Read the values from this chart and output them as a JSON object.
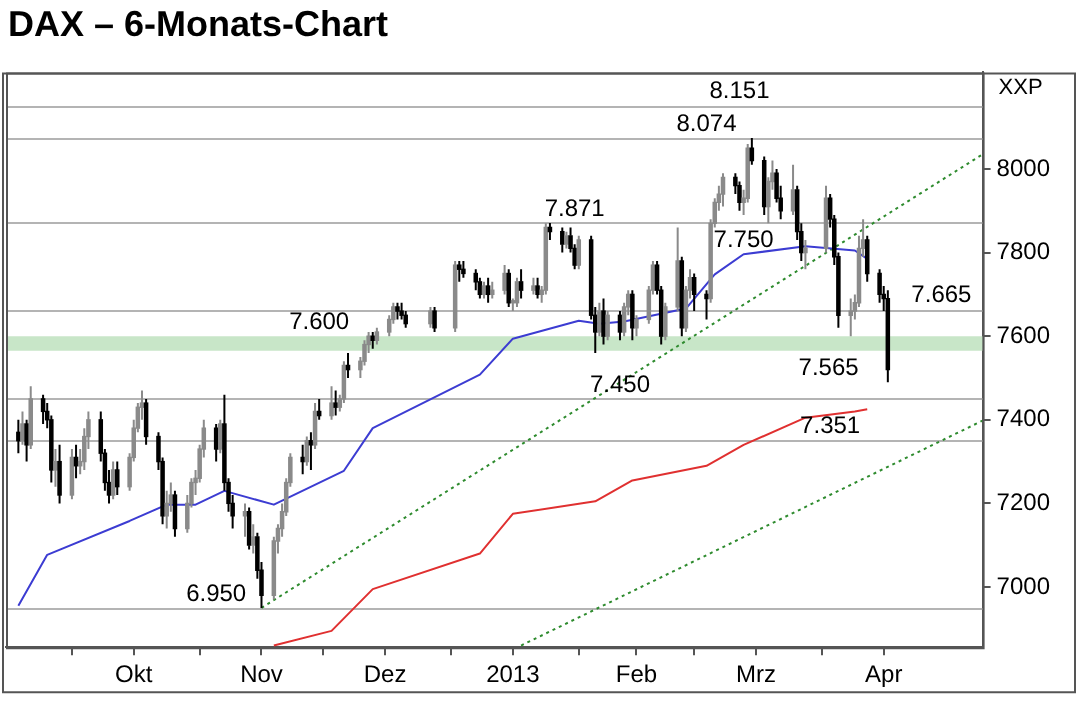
{
  "chart_data": {
    "type": "candlestick",
    "title": "DAX – 6-Monats-Chart",
    "ylabel": "XXP",
    "colors": [
      "#000000",
      "#8a8a8a",
      "#000000",
      "#8a8a8a",
      "#000000",
      "#000000",
      "#000000",
      "#8a8a8a",
      "#000000",
      "#8a8a8a",
      "#000000",
      "#8a8a8a",
      "#8a8a8a",
      "#8a8a8a",
      "#000000",
      "#000000",
      "#000000",
      "#8a8a8a",
      "#000000",
      "#8a8a8a",
      "#8a8a8a",
      "#8a8a8a",
      "#8a8a8a",
      "#000000",
      "#000000",
      "#000000",
      "#8a8a8a",
      "#8a8a8a",
      "#000000",
      "#8a8a8a",
      "#8a8a8a",
      "#8a8a8a",
      "#8a8a8a",
      "#8a8a8a",
      "#000000",
      "#8a8a8a",
      "#000000",
      "#000000",
      "#000000",
      "#8a8a8a",
      "#000000",
      "#8a8a8a",
      "#000000",
      "#000000",
      "#8a8a8a",
      "#8a8a8a",
      "#8a8a8a",
      "#8a8a8a",
      "#8a8a8a",
      "#000000",
      "#8a8a8a",
      "#000000",
      "#8a8a8a",
      "#000000",
      "#8a8a8a",
      "#000000",
      "#8a8a8a",
      "#8a8a8a",
      "#000000",
      "#8a8a8a",
      "#8a8a8a",
      "#8a8a8a",
      "#000000",
      "#8a8a8a",
      "#8a8a8a",
      "#8a8a8a",
      "#000000",
      "#000000",
      "#000000",
      "#8a8a8a",
      "#000000",
      "#8a8a8a",
      "#000000",
      "#000000",
      "#000000",
      "#000000",
      "#8a8a8a",
      "#000000",
      "#8a8a8a",
      "#8a8a8a",
      "#000000",
      "#8a8a8a",
      "#8a8a8a",
      "#000000",
      "#8a8a8a",
      "#000000",
      "#8a8a8a",
      "#8a8a8a",
      "#000000",
      "#000000",
      "#8a8a8a",
      "#000000",
      "#000000",
      "#8a8a8a",
      "#000000",
      "#000000",
      "#8a8a8a",
      "#000000",
      "#8a8a8a",
      "#000000",
      "#8a8a8a",
      "#8a8a8a",
      "#000000",
      "#8a8a8a",
      "#8a8a8a",
      "#8a8a8a",
      "#000000",
      "#000000",
      "#8a8a8a",
      "#8a8a8a",
      "#000000",
      "#8a8a8a",
      "#8a8a8a",
      "#000000",
      "#000000",
      "#8a8a8a",
      "#8a8a8a",
      "#8a8a8a",
      "#8a8a8a",
      "#000000",
      "#000000",
      "#8a8a8a",
      "#8a8a8a",
      "#000000",
      "#000000",
      "#8a8a8a",
      "#8a8a8a",
      "#000000",
      "#000000",
      "#8a8a8a",
      "#000000",
      "#000000",
      "#8a8a8a",
      "#8a8a8a",
      "#000000",
      "#000000",
      "#000000",
      "#8a8a8a",
      "#8a8a8a",
      "#8a8a8a",
      "#8a8a8a",
      "#000000",
      "#000000",
      "#000000",
      "#000000"
    ],
    "x": [
      "2012-09-18",
      "2012-09-19",
      "2012-09-20",
      "2012-09-21",
      "2012-09-24",
      "2012-09-25",
      "2012-09-26",
      "2012-09-27",
      "2012-09-28",
      "2012-10-01",
      "2012-10-02",
      "2012-10-03",
      "2012-10-04",
      "2012-10-05",
      "2012-10-08",
      "2012-10-09",
      "2012-10-10",
      "2012-10-11",
      "2012-10-12",
      "2012-10-15",
      "2012-10-16",
      "2012-10-17",
      "2012-10-18",
      "2012-10-19",
      "2012-10-22",
      "2012-10-23",
      "2012-10-24",
      "2012-10-25",
      "2012-10-26",
      "2012-10-29",
      "2012-10-30",
      "2012-10-31",
      "2012-11-01",
      "2012-11-02",
      "2012-11-05",
      "2012-11-06",
      "2012-11-07",
      "2012-11-08",
      "2012-11-09",
      "2012-11-12",
      "2012-11-13",
      "2012-11-14",
      "2012-11-15",
      "2012-11-16",
      "2012-11-19",
      "2012-11-20",
      "2012-11-21",
      "2012-11-22",
      "2012-11-23",
      "2012-11-26",
      "2012-11-27",
      "2012-11-28",
      "2012-11-29",
      "2012-11-30",
      "2012-12-03",
      "2012-12-04",
      "2012-12-05",
      "2012-12-06",
      "2012-12-07",
      "2012-12-10",
      "2012-12-11",
      "2012-12-12",
      "2012-12-13",
      "2012-12-14",
      "2012-12-17",
      "2012-12-18",
      "2012-12-19",
      "2012-12-20",
      "2012-12-21",
      "2012-12-27",
      "2012-12-28",
      "2013-01-02",
      "2013-01-03",
      "2013-01-04",
      "2013-01-07",
      "2013-01-08",
      "2013-01-09",
      "2013-01-10",
      "2013-01-11",
      "2013-01-14",
      "2013-01-15",
      "2013-01-16",
      "2013-01-17",
      "2013-01-18",
      "2013-01-21",
      "2013-01-22",
      "2013-01-23",
      "2013-01-24",
      "2013-01-25",
      "2013-01-28",
      "2013-01-29",
      "2013-01-30",
      "2013-01-31",
      "2013-02-01",
      "2013-02-04",
      "2013-02-05",
      "2013-02-06",
      "2013-02-07",
      "2013-02-08",
      "2013-02-11",
      "2013-02-12",
      "2013-02-13",
      "2013-02-14",
      "2013-02-15",
      "2013-02-18",
      "2013-02-19",
      "2013-02-20",
      "2013-02-21",
      "2013-02-22",
      "2013-02-25",
      "2013-02-26",
      "2013-02-27",
      "2013-02-28",
      "2013-03-01",
      "2013-03-04",
      "2013-03-05",
      "2013-03-06",
      "2013-03-07",
      "2013-03-08",
      "2013-03-11",
      "2013-03-12",
      "2013-03-13",
      "2013-03-14",
      "2013-03-15",
      "2013-03-18",
      "2013-03-19",
      "2013-03-20",
      "2013-03-21",
      "2013-03-22",
      "2013-03-25",
      "2013-03-26",
      "2013-03-27",
      "2013-03-28",
      "2013-04-02",
      "2013-04-03",
      "2013-04-04",
      "2013-04-05",
      "2013-04-08",
      "2013-04-09",
      "2013-04-10",
      "2013-04-11",
      "2013-04-12",
      "2013-04-15",
      "2013-04-16",
      "2013-04-17"
    ],
    "ohlc": [
      [
        7370,
        7400,
        7320,
        7350
      ],
      [
        7350,
        7420,
        7340,
        7390
      ],
      [
        7390,
        7400,
        7300,
        7340
      ],
      [
        7340,
        7480,
        7330,
        7450
      ],
      [
        7450,
        7460,
        7390,
        7420
      ],
      [
        7420,
        7440,
        7380,
        7400
      ],
      [
        7400,
        7410,
        7250,
        7280
      ],
      [
        7280,
        7330,
        7240,
        7300
      ],
      [
        7300,
        7340,
        7200,
        7220
      ],
      [
        7220,
        7330,
        7210,
        7310
      ],
      [
        7310,
        7340,
        7260,
        7290
      ],
      [
        7290,
        7330,
        7270,
        7300
      ],
      [
        7300,
        7380,
        7280,
        7360
      ],
      [
        7360,
        7420,
        7330,
        7400
      ],
      [
        7400,
        7420,
        7300,
        7320
      ],
      [
        7320,
        7330,
        7230,
        7250
      ],
      [
        7250,
        7280,
        7200,
        7220
      ],
      [
        7220,
        7300,
        7210,
        7280
      ],
      [
        7280,
        7300,
        7220,
        7240
      ],
      [
        7240,
        7320,
        7230,
        7310
      ],
      [
        7310,
        7400,
        7300,
        7380
      ],
      [
        7380,
        7440,
        7370,
        7430
      ],
      [
        7430,
        7470,
        7400,
        7440
      ],
      [
        7440,
        7450,
        7340,
        7360
      ],
      [
        7360,
        7370,
        7280,
        7300
      ],
      [
        7300,
        7310,
        7150,
        7170
      ],
      [
        7170,
        7230,
        7140,
        7200
      ],
      [
        7200,
        7250,
        7180,
        7220
      ],
      [
        7220,
        7230,
        7120,
        7140
      ],
      [
        7140,
        7220,
        7130,
        7200
      ],
      [
        7200,
        7260,
        7190,
        7250
      ],
      [
        7250,
        7280,
        7220,
        7260
      ],
      [
        7260,
        7340,
        7250,
        7330
      ],
      [
        7330,
        7400,
        7310,
        7380
      ],
      [
        7380,
        7390,
        7300,
        7330
      ],
      [
        7330,
        7400,
        7320,
        7390
      ],
      [
        7390,
        7460,
        7230,
        7250
      ],
      [
        7250,
        7260,
        7180,
        7200
      ],
      [
        7200,
        7220,
        7140,
        7170
      ],
      [
        7170,
        7200,
        7120,
        7180
      ],
      [
        7180,
        7190,
        7090,
        7100
      ],
      [
        7100,
        7150,
        7080,
        7120
      ],
      [
        7120,
        7130,
        7020,
        7040
      ],
      [
        7040,
        7060,
        6950,
        6980
      ],
      [
        6980,
        7120,
        6970,
        7110
      ],
      [
        7110,
        7150,
        7080,
        7140
      ],
      [
        7140,
        7200,
        7120,
        7180
      ],
      [
        7180,
        7260,
        7170,
        7250
      ],
      [
        7250,
        7320,
        7240,
        7310
      ],
      [
        7310,
        7340,
        7270,
        7300
      ],
      [
        7300,
        7360,
        7290,
        7350
      ],
      [
        7350,
        7370,
        7280,
        7340
      ],
      [
        7340,
        7440,
        7330,
        7420
      ],
      [
        7420,
        7450,
        7400,
        7410
      ],
      [
        7410,
        7480,
        7400,
        7440
      ],
      [
        7440,
        7470,
        7410,
        7430
      ],
      [
        7430,
        7460,
        7420,
        7450
      ],
      [
        7450,
        7540,
        7440,
        7530
      ],
      [
        7530,
        7560,
        7500,
        7520
      ],
      [
        7520,
        7550,
        7500,
        7540
      ],
      [
        7540,
        7590,
        7530,
        7580
      ],
      [
        7580,
        7610,
        7560,
        7600
      ],
      [
        7600,
        7610,
        7570,
        7590
      ],
      [
        7590,
        7620,
        7580,
        7610
      ],
      [
        7610,
        7650,
        7600,
        7640
      ],
      [
        7640,
        7680,
        7630,
        7670
      ],
      [
        7670,
        7680,
        7640,
        7660
      ],
      [
        7660,
        7680,
        7640,
        7650
      ],
      [
        7650,
        7660,
        7620,
        7630
      ],
      [
        7630,
        7670,
        7620,
        7660
      ],
      [
        7660,
        7670,
        7610,
        7620
      ],
      [
        7620,
        7780,
        7610,
        7770
      ],
      [
        7770,
        7780,
        7730,
        7760
      ],
      [
        7760,
        7780,
        7740,
        7750
      ],
      [
        7750,
        7760,
        7710,
        7730
      ],
      [
        7730,
        7740,
        7690,
        7700
      ],
      [
        7700,
        7730,
        7690,
        7720
      ],
      [
        7720,
        7740,
        7680,
        7700
      ],
      [
        7700,
        7730,
        7690,
        7710
      ],
      [
        7710,
        7770,
        7700,
        7750
      ],
      [
        7750,
        7760,
        7670,
        7680
      ],
      [
        7680,
        7690,
        7660,
        7680
      ],
      [
        7680,
        7740,
        7670,
        7730
      ],
      [
        7730,
        7760,
        7690,
        7710
      ],
      [
        7710,
        7740,
        7700,
        7720
      ],
      [
        7720,
        7740,
        7690,
        7700
      ],
      [
        7700,
        7720,
        7680,
        7710
      ],
      [
        7710,
        7870,
        7700,
        7860
      ],
      [
        7860,
        7871,
        7830,
        7850
      ],
      [
        7850,
        7860,
        7800,
        7820
      ],
      [
        7820,
        7850,
        7810,
        7840
      ],
      [
        7840,
        7860,
        7800,
        7810
      ],
      [
        7810,
        7820,
        7760,
        7770
      ],
      [
        7770,
        7840,
        7760,
        7830
      ],
      [
        7830,
        7840,
        7640,
        7650
      ],
      [
        7650,
        7670,
        7560,
        7610
      ],
      [
        7610,
        7680,
        7600,
        7660
      ],
      [
        7660,
        7690,
        7580,
        7600
      ],
      [
        7600,
        7660,
        7590,
        7650
      ],
      [
        7650,
        7660,
        7590,
        7610
      ],
      [
        7610,
        7680,
        7600,
        7670
      ],
      [
        7670,
        7710,
        7650,
        7700
      ],
      [
        7700,
        7710,
        7590,
        7620
      ],
      [
        7620,
        7650,
        7600,
        7640
      ],
      [
        7640,
        7720,
        7630,
        7710
      ],
      [
        7710,
        7780,
        7700,
        7770
      ],
      [
        7770,
        7780,
        7700,
        7710
      ],
      [
        7710,
        7720,
        7580,
        7600
      ],
      [
        7600,
        7680,
        7590,
        7670
      ],
      [
        7670,
        7860,
        7660,
        7780
      ],
      [
        7780,
        7790,
        7600,
        7620
      ],
      [
        7620,
        7720,
        7610,
        7710
      ],
      [
        7710,
        7760,
        7690,
        7740
      ],
      [
        7740,
        7750,
        7660,
        7700
      ],
      [
        7700,
        7710,
        7640,
        7690
      ],
      [
        7690,
        7880,
        7680,
        7870
      ],
      [
        7870,
        7930,
        7860,
        7920
      ],
      [
        7920,
        7960,
        7900,
        7940
      ],
      [
        7940,
        7990,
        7910,
        7980
      ],
      [
        7980,
        7990,
        7940,
        7960
      ],
      [
        7960,
        7970,
        7900,
        7920
      ],
      [
        7920,
        7950,
        7890,
        7930
      ],
      [
        7930,
        8060,
        7920,
        8050
      ],
      [
        8050,
        8074,
        8010,
        8020
      ],
      [
        8020,
        8030,
        7890,
        7910
      ],
      [
        7910,
        7980,
        7870,
        7970
      ],
      [
        7970,
        8020,
        7950,
        7990
      ],
      [
        7990,
        8000,
        7920,
        7930
      ],
      [
        7930,
        7960,
        7880,
        7900
      ],
      [
        7900,
        8010,
        7890,
        7950
      ],
      [
        7950,
        7960,
        7830,
        7850
      ],
      [
        7850,
        7870,
        7780,
        7800
      ],
      [
        7800,
        7830,
        7760,
        7810
      ],
      [
        7810,
        7960,
        7800,
        7930
      ],
      [
        7930,
        7940,
        7860,
        7880
      ],
      [
        7880,
        7890,
        7770,
        7790
      ],
      [
        7790,
        7800,
        7620,
        7650
      ],
      [
        7650,
        7690,
        7600,
        7660
      ],
      [
        7660,
        7700,
        7640,
        7680
      ],
      [
        7680,
        7840,
        7670,
        7810
      ],
      [
        7810,
        7880,
        7790,
        7830
      ],
      [
        7830,
        7840,
        7730,
        7750
      ],
      [
        7750,
        7760,
        7680,
        7700
      ],
      [
        7700,
        7720,
        7660,
        7690
      ],
      [
        7690,
        7710,
        7490,
        7520
      ]
    ],
    "series": [
      {
        "type": "line",
        "color": "#3c3cd2",
        "line_style": "solid",
        "x": [
          "2012-09-18",
          "2012-09-25",
          "2012-10-15",
          "2012-10-24",
          "2012-10-31",
          "2012-11-07",
          "2012-11-19",
          "2012-12-06",
          "2012-12-13",
          "2013-01-08",
          "2013-01-16",
          "2013-02-01",
          "2013-02-06",
          "2013-02-12",
          "2013-02-27",
          "2013-03-06",
          "2013-03-13",
          "2013-03-28",
          "2013-04-09",
          "2013-04-12"
        ],
        "values": [
          6955,
          7077,
          7158,
          7197,
          7197,
          7230,
          7197,
          7278,
          7380,
          7508,
          7594,
          7637,
          7630,
          7635,
          7666,
          7748,
          7796,
          7815,
          7805,
          7785
        ]
      },
      {
        "type": "line",
        "color": "#e03030",
        "line_style": "solid",
        "x": [
          "2012-11-19",
          "2012-12-03",
          "2012-12-13",
          "2013-01-08",
          "2013-01-16",
          "2013-02-05",
          "2013-02-14",
          "2013-03-04",
          "2013-03-13",
          "2013-03-28",
          "2013-04-09",
          "2013-04-12"
        ],
        "values": [
          6860,
          6895,
          6995,
          7080,
          7175,
          7205,
          7255,
          7290,
          7340,
          7405,
          7420,
          7425
        ]
      },
      {
        "type": "line",
        "color": "#2e8b2e",
        "line_style": "dotted",
        "x": [
          "2012-11-16",
          "2013-05-10"
        ],
        "values": [
          6950,
          8035
        ]
      },
      {
        "type": "line",
        "color": "#2e8b2e",
        "line_style": "dotted",
        "x": [
          "2013-01-18",
          "2013-05-10"
        ],
        "values": [
          6860,
          7398
        ]
      }
    ],
    "ref_lines": [
      {
        "axis": "y",
        "value": 8151,
        "color": "#b4b4b4"
      },
      {
        "axis": "y",
        "value": 8074,
        "color": "#b4b4b4"
      },
      {
        "axis": "y",
        "value": 7871,
        "color": "#b4b4b4"
      },
      {
        "axis": "y",
        "value": 7665,
        "color": "#b4b4b4"
      },
      {
        "axis": "y",
        "value": 7450,
        "color": "#b4b4b4"
      },
      {
        "axis": "y",
        "value": 7351,
        "color": "#b4b4b4"
      },
      {
        "axis": "y",
        "value": 6950,
        "color": "#b4b4b4"
      }
    ],
    "bands": [
      {
        "axis": "y",
        "from": 7565,
        "to": 7600,
        "color": "#c8e6c8",
        "label": "7.565"
      }
    ],
    "annotations": [
      {
        "text": "8.151",
        "x": "2013-03-12",
        "y": 8151
      },
      {
        "text": "8.074",
        "x": "2013-03-04",
        "y": 8074
      },
      {
        "text": "7.871",
        "x": "2013-01-31",
        "y": 7871
      },
      {
        "text": "7.750",
        "x": "2013-03-13",
        "y": 7796
      },
      {
        "text": "7.665",
        "x": "2013-04-30",
        "y": 7665
      },
      {
        "text": "7.600",
        "x": "2012-11-30",
        "y": 7600
      },
      {
        "text": "7.450",
        "x": "2013-02-11",
        "y": 7450
      },
      {
        "text": "7.351",
        "x": "2013-04-03",
        "y": 7351
      },
      {
        "text": "6.950",
        "x": "2012-11-05",
        "y": 6950
      }
    ],
    "xlim": [
      "2012-09-15",
      "2013-05-10"
    ],
    "xticks": [
      {
        "value": "2012-10-01",
        "label": null
      },
      {
        "value": "2012-10-16",
        "label": "Okt"
      },
      {
        "value": "2012-11-01",
        "label": null
      },
      {
        "value": "2012-11-16",
        "label": "Nov"
      },
      {
        "value": "2012-12-01",
        "label": null
      },
      {
        "value": "2012-12-16",
        "label": "Dez"
      },
      {
        "value": "2013-01-01",
        "label": null
      },
      {
        "value": "2013-01-16",
        "label": "2013"
      },
      {
        "value": "2013-02-01",
        "label": null
      },
      {
        "value": "2013-02-15",
        "label": "Feb"
      },
      {
        "value": "2013-03-01",
        "label": null
      },
      {
        "value": "2013-03-16",
        "label": "Mrz"
      },
      {
        "value": "2013-04-01",
        "label": null
      },
      {
        "value": "2013-04-16",
        "label": "Apr"
      }
    ],
    "ylim": [
      6856,
      8231
    ],
    "yticks": [
      7000,
      7200,
      7400,
      7600,
      7800,
      8000
    ],
    "grid": false,
    "legend": false
  }
}
